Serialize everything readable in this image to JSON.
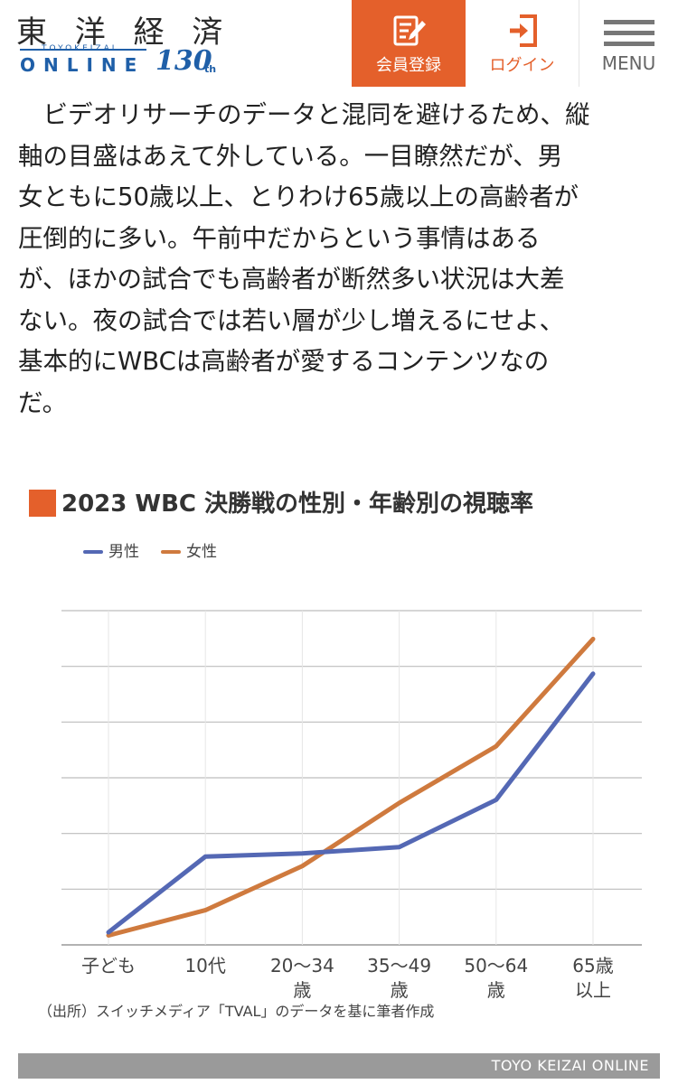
{
  "header": {
    "logo_main": "東 洋 経 済",
    "logo_sub": "TOYOKEIZAI",
    "logo_online": "ONLINE",
    "logo_130": "130",
    "logo_th": "th",
    "register_label": "会員登録",
    "login_label": "ログイン",
    "menu_label": "MENU"
  },
  "article": {
    "lines": [
      "　ビデオリサーチのデータと混同を避けるため、縦",
      "軸の目盛はあえて外している。一目瞭然だが、男",
      "女ともに50歳以上、とりわけ65歳以上の高齢者が",
      "圧倒的に多い。午前中だからという事情はある",
      "が、ほかの試合でも高齢者が断然多い状況は大差",
      "ない。夜の試合では若い層が少し増えるにせよ、",
      "基本的にWBCは高齢者が愛するコンテンツなの",
      "だ。"
    ]
  },
  "chart_data": {
    "type": "line",
    "title": "2023 WBC 決勝戦の性別・年齢別の視聴率",
    "categories": [
      "子ども",
      "10代",
      "20〜34歳",
      "35〜49歳",
      "50〜64歳",
      "65歳以上"
    ],
    "category_lines": [
      [
        "子ども"
      ],
      [
        "10代"
      ],
      [
        "20〜34",
        "歳"
      ],
      [
        "35〜49",
        "歳"
      ],
      [
        "50〜64",
        "歳"
      ],
      [
        "65歳",
        "以上"
      ]
    ],
    "series": [
      {
        "name": "男性",
        "color": "#5468b4",
        "values": [
          0.1,
          1.3,
          1.35,
          1.45,
          2.2,
          4.2
        ]
      },
      {
        "name": "女性",
        "color": "#cf7a3e",
        "values": [
          0.05,
          0.45,
          1.15,
          2.15,
          3.05,
          4.75
        ]
      }
    ],
    "ylim": [
      -0.1,
      5.2
    ],
    "y_ticks_hidden": true,
    "grid": true,
    "legend": "top-left",
    "source": "（出所）スイッチメディア「TVAL」のデータを基に筆者作成"
  },
  "footer": {
    "credit": "TOYO KEIZAI ONLINE"
  }
}
